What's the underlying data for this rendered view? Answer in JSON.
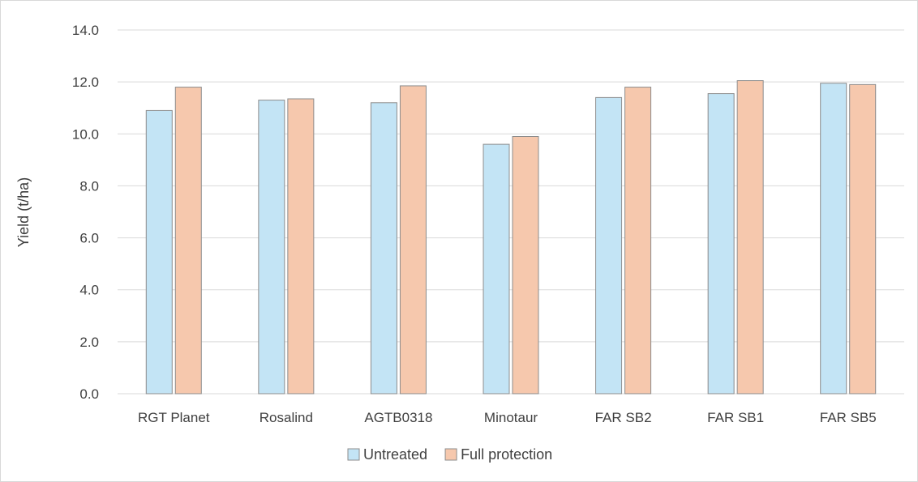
{
  "chart_data": {
    "type": "bar",
    "title": "",
    "xlabel": "",
    "ylabel": "Yield (t/ha)",
    "ylim": [
      0,
      14
    ],
    "yticks": [
      "0.0",
      "2.0",
      "4.0",
      "6.0",
      "8.0",
      "10.0",
      "12.0",
      "14.0"
    ],
    "grid": true,
    "legend_position": "bottom",
    "categories": [
      "RGT Planet",
      "Rosalind",
      "AGTB0318",
      "Minotaur",
      "FAR SB2",
      "FAR SB1",
      "FAR SB5"
    ],
    "series": [
      {
        "name": "Untreated",
        "color": "#c3e4f5",
        "values": [
          10.9,
          11.3,
          11.2,
          9.6,
          11.4,
          11.55,
          11.95
        ]
      },
      {
        "name": "Full protection",
        "color": "#f6c8ad",
        "values": [
          11.8,
          11.35,
          11.85,
          9.9,
          11.8,
          12.05,
          11.9
        ]
      }
    ]
  }
}
